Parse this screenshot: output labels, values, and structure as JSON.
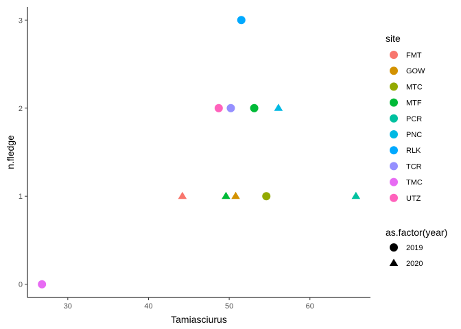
{
  "chart_data": {
    "type": "scatter",
    "xlabel": "Tamiasciurus",
    "ylabel": "n.fledge",
    "xlim": [
      25,
      67.5
    ],
    "ylim": [
      -0.15,
      3.15
    ],
    "xticks": [
      30,
      40,
      50,
      60
    ],
    "yticks": [
      0,
      1,
      2,
      3
    ],
    "grid": false,
    "legend_position": "right",
    "color_legend": {
      "title": "site",
      "entries": [
        {
          "label": "FMT",
          "color": "#F8766D"
        },
        {
          "label": "GOW",
          "color": "#D39200"
        },
        {
          "label": "MTC",
          "color": "#93AA00"
        },
        {
          "label": "MTF",
          "color": "#00BA38"
        },
        {
          "label": "PCR",
          "color": "#00C19F"
        },
        {
          "label": "PNC",
          "color": "#00B9E3"
        },
        {
          "label": "RLK",
          "color": "#00A9FF"
        },
        {
          "label": "TCR",
          "color": "#9590FF"
        },
        {
          "label": "TMC",
          "color": "#E76BF3"
        },
        {
          "label": "UTZ",
          "color": "#FF62BC"
        }
      ]
    },
    "shape_legend": {
      "title": "as.factor(year)",
      "entries": [
        {
          "label": "2019",
          "shape": "circle"
        },
        {
          "label": "2020",
          "shape": "triangle"
        }
      ]
    },
    "points": [
      {
        "x": 51.5,
        "y": 3,
        "site": "RLK",
        "year": "2019"
      },
      {
        "x": 48.7,
        "y": 2,
        "site": "UTZ",
        "year": "2019"
      },
      {
        "x": 50.2,
        "y": 2,
        "site": "TCR",
        "year": "2019"
      },
      {
        "x": 53.1,
        "y": 2,
        "site": "MTF",
        "year": "2019"
      },
      {
        "x": 56.1,
        "y": 2,
        "site": "PNC",
        "year": "2020"
      },
      {
        "x": 44.2,
        "y": 1,
        "site": "FMT",
        "year": "2020"
      },
      {
        "x": 49.6,
        "y": 1,
        "site": "MTF",
        "year": "2020"
      },
      {
        "x": 50.8,
        "y": 1,
        "site": "GOW",
        "year": "2020"
      },
      {
        "x": 54.6,
        "y": 1,
        "site": "MTC",
        "year": "2019"
      },
      {
        "x": 65.7,
        "y": 1,
        "site": "PCR",
        "year": "2020"
      },
      {
        "x": 26.8,
        "y": 0,
        "site": "TMC",
        "year": "2019"
      }
    ]
  }
}
